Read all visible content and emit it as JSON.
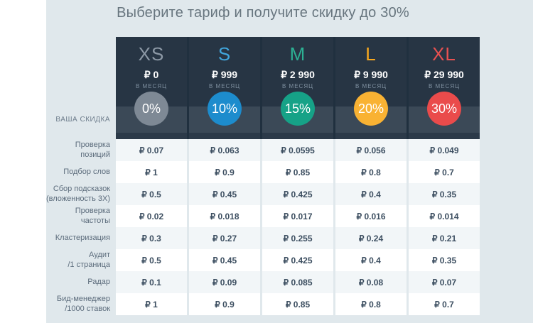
{
  "title": "Выберите тариф и получите скидку до 30%",
  "discount_row_label": "ВАША СКИДКА",
  "per_month": "в месяц",
  "currency": "₽",
  "colors": {
    "page_bg": "#e0e8ec",
    "panel_bg": "#273544",
    "discount_band_bg": "#3b4957",
    "panel_strip_bg": "#2c3a49",
    "panel_gap": "#20303f",
    "row_alt_bg": "#f2f6f8",
    "row_white_bg": "#ffffff",
    "title_color": "#67757e",
    "value_color": "#3d4f61",
    "label_color": "#5c6c7c"
  },
  "tariffs": [
    {
      "name": "XS",
      "price": "₽ 0",
      "discount": "0%",
      "name_color": "#8d99a6",
      "circle_color": "#7e8995"
    },
    {
      "name": "S",
      "price": "₽ 999",
      "discount": "10%",
      "name_color": "#41a7dd",
      "circle_color": "#1d8ccd"
    },
    {
      "name": "M",
      "price": "₽ 2 990",
      "discount": "15%",
      "name_color": "#2db093",
      "circle_color": "#16a287"
    },
    {
      "name": "L",
      "price": "₽ 9 990",
      "discount": "20%",
      "name_color": "#f8a81e",
      "circle_color": "#f9b233"
    },
    {
      "name": "XL",
      "price": "₽ 29 990",
      "discount": "30%",
      "name_color": "#e85151",
      "circle_color": "#ea4b4b"
    }
  ],
  "rows": [
    {
      "label": "Проверка позиций",
      "values": [
        "₽ 0.07",
        "₽ 0.063",
        "₽ 0.0595",
        "₽ 0.056",
        "₽ 0.049"
      ]
    },
    {
      "label": "Подбор слов",
      "values": [
        "₽ 1",
        "₽ 0.9",
        "₽ 0.85",
        "₽ 0.8",
        "₽ 0.7"
      ]
    },
    {
      "label": "Сбор подсказок\n(вложенность 3X)",
      "values": [
        "₽ 0.5",
        "₽ 0.45",
        "₽ 0.425",
        "₽ 0.4",
        "₽ 0.35"
      ]
    },
    {
      "label": "Проверка частоты",
      "values": [
        "₽ 0.02",
        "₽ 0.018",
        "₽ 0.017",
        "₽ 0.016",
        "₽ 0.014"
      ]
    },
    {
      "label": "Кластеризация",
      "values": [
        "₽ 0.3",
        "₽ 0.27",
        "₽ 0.255",
        "₽ 0.24",
        "₽ 0.21"
      ]
    },
    {
      "label": "Аудит\n/1 страница",
      "values": [
        "₽ 0.5",
        "₽ 0.45",
        "₽ 0.425",
        "₽ 0.4",
        "₽ 0.35"
      ]
    },
    {
      "label": "Радар",
      "values": [
        "₽ 0.1",
        "₽ 0.09",
        "₽ 0.085",
        "₽ 0.08",
        "₽ 0.07"
      ]
    },
    {
      "label": "Бид-менеджер\n/1000 ставок",
      "values": [
        "₽ 1",
        "₽ 0.9",
        "₽ 0.85",
        "₽ 0.8",
        "₽ 0.7"
      ]
    }
  ]
}
